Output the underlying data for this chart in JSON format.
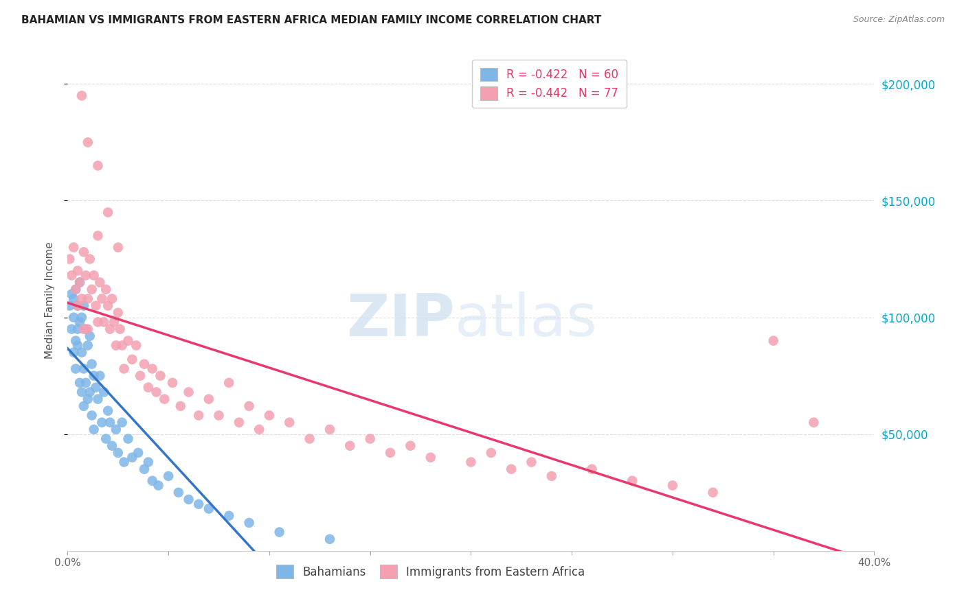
{
  "title": "BAHAMIAN VS IMMIGRANTS FROM EASTERN AFRICA MEDIAN FAMILY INCOME CORRELATION CHART",
  "source": "Source: ZipAtlas.com",
  "ylabel": "Median Family Income",
  "ytick_labels": [
    "$200,000",
    "$150,000",
    "$100,000",
    "$50,000"
  ],
  "ytick_values": [
    200000,
    150000,
    100000,
    50000
  ],
  "ytick_right_color": "#00AACC",
  "ylim": [
    0,
    215000
  ],
  "xlim": [
    0.0,
    0.4
  ],
  "legend_bahamian": "R = -0.422   N = 60",
  "legend_eastern": "R = -0.442   N = 77",
  "legend_label_bahamian": "Bahamians",
  "legend_label_eastern": "Immigrants from Eastern Africa",
  "color_bahamian": "#7EB6E8",
  "color_eastern": "#F4A0B0",
  "color_trendline_bahamian": "#3575C8",
  "color_trendline_eastern": "#E8386D",
  "color_trendline_dashed": "#AACCEE",
  "background_color": "#FFFFFF",
  "title_color": "#222222",
  "source_color": "#888888",
  "ylabel_color": "#555555",
  "xtick_color": "#666666",
  "grid_color": "#DDDDDD",
  "legend_text_color": "#EE3366",
  "bottom_legend_color": "#444444",
  "bah_x": [
    0.001,
    0.002,
    0.002,
    0.003,
    0.003,
    0.003,
    0.004,
    0.004,
    0.004,
    0.005,
    0.005,
    0.005,
    0.006,
    0.006,
    0.006,
    0.007,
    0.007,
    0.007,
    0.008,
    0.008,
    0.008,
    0.009,
    0.009,
    0.01,
    0.01,
    0.011,
    0.011,
    0.012,
    0.012,
    0.013,
    0.013,
    0.014,
    0.015,
    0.016,
    0.017,
    0.018,
    0.019,
    0.02,
    0.021,
    0.022,
    0.024,
    0.025,
    0.027,
    0.028,
    0.03,
    0.032,
    0.035,
    0.038,
    0.04,
    0.042,
    0.045,
    0.05,
    0.055,
    0.06,
    0.065,
    0.07,
    0.08,
    0.09,
    0.105,
    0.13
  ],
  "bah_y": [
    105000,
    110000,
    95000,
    100000,
    108000,
    85000,
    112000,
    90000,
    78000,
    105000,
    95000,
    88000,
    115000,
    98000,
    72000,
    100000,
    85000,
    68000,
    105000,
    78000,
    62000,
    95000,
    72000,
    88000,
    65000,
    92000,
    68000,
    80000,
    58000,
    75000,
    52000,
    70000,
    65000,
    75000,
    55000,
    68000,
    48000,
    60000,
    55000,
    45000,
    52000,
    42000,
    55000,
    38000,
    48000,
    40000,
    42000,
    35000,
    38000,
    30000,
    28000,
    32000,
    25000,
    22000,
    20000,
    18000,
    15000,
    12000,
    8000,
    5000
  ],
  "eas_x": [
    0.001,
    0.002,
    0.003,
    0.004,
    0.005,
    0.005,
    0.006,
    0.007,
    0.008,
    0.008,
    0.009,
    0.01,
    0.01,
    0.011,
    0.012,
    0.013,
    0.014,
    0.015,
    0.015,
    0.016,
    0.017,
    0.018,
    0.019,
    0.02,
    0.021,
    0.022,
    0.023,
    0.024,
    0.025,
    0.026,
    0.027,
    0.028,
    0.03,
    0.032,
    0.034,
    0.036,
    0.038,
    0.04,
    0.042,
    0.044,
    0.046,
    0.048,
    0.052,
    0.056,
    0.06,
    0.065,
    0.07,
    0.075,
    0.08,
    0.085,
    0.09,
    0.095,
    0.1,
    0.11,
    0.12,
    0.13,
    0.14,
    0.15,
    0.16,
    0.17,
    0.18,
    0.2,
    0.21,
    0.22,
    0.23,
    0.24,
    0.26,
    0.28,
    0.3,
    0.32,
    0.007,
    0.01,
    0.015,
    0.02,
    0.025,
    0.35,
    0.37
  ],
  "eas_y": [
    125000,
    118000,
    130000,
    112000,
    120000,
    105000,
    115000,
    108000,
    128000,
    95000,
    118000,
    108000,
    95000,
    125000,
    112000,
    118000,
    105000,
    135000,
    98000,
    115000,
    108000,
    98000,
    112000,
    105000,
    95000,
    108000,
    98000,
    88000,
    102000,
    95000,
    88000,
    78000,
    90000,
    82000,
    88000,
    75000,
    80000,
    70000,
    78000,
    68000,
    75000,
    65000,
    72000,
    62000,
    68000,
    58000,
    65000,
    58000,
    72000,
    55000,
    62000,
    52000,
    58000,
    55000,
    48000,
    52000,
    45000,
    48000,
    42000,
    45000,
    40000,
    38000,
    42000,
    35000,
    38000,
    32000,
    35000,
    30000,
    28000,
    25000,
    195000,
    175000,
    165000,
    145000,
    130000,
    90000,
    55000
  ]
}
